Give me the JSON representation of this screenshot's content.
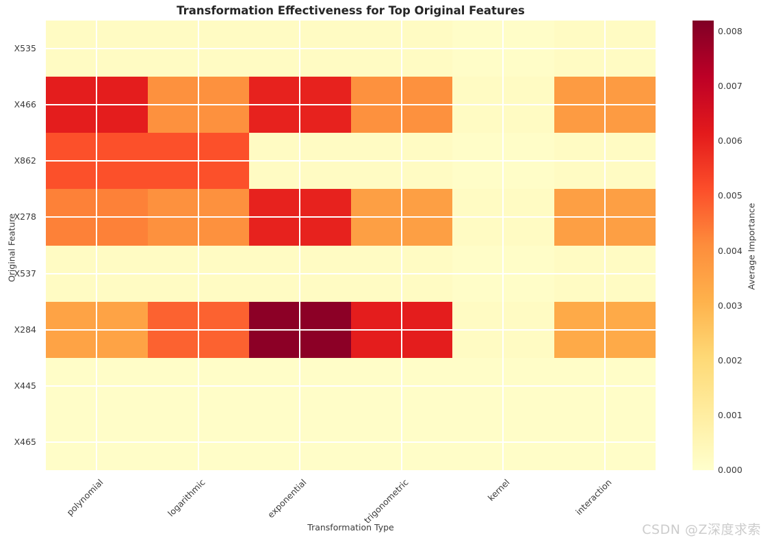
{
  "title": "Transformation Effectiveness for Top Original Features",
  "watermark": "CSDN @Z深度求索",
  "chart_data": {
    "type": "heatmap",
    "title": "Transformation Effectiveness for Top Original Features",
    "xlabel": "Transformation Type",
    "ylabel": "Original Feature",
    "x_categories": [
      "polynomial",
      "logarithmic",
      "exponential",
      "trigonometric",
      "kernel",
      "interaction"
    ],
    "y_categories": [
      "X535",
      "X466",
      "X862",
      "X278",
      "X537",
      "X284",
      "X445",
      "X465"
    ],
    "values": [
      [
        0.0002,
        0.0002,
        0.0002,
        0.0002,
        0.0001,
        0.0002
      ],
      [
        0.0061,
        0.004,
        0.006,
        0.004,
        0.0002,
        0.0037
      ],
      [
        0.0051,
        0.0051,
        0.0002,
        0.0002,
        0.0001,
        0.0002
      ],
      [
        0.0043,
        0.004,
        0.006,
        0.0036,
        0.0002,
        0.0036
      ],
      [
        0.0002,
        0.0002,
        0.0002,
        0.0002,
        0.0001,
        0.0002
      ],
      [
        0.0035,
        0.0048,
        0.008,
        0.0061,
        0.0002,
        0.0033
      ],
      [
        0.0001,
        0.0001,
        0.0001,
        0.0001,
        0.0001,
        0.0001
      ],
      [
        0.0001,
        0.0001,
        0.0001,
        0.0001,
        0.0001,
        0.0001
      ]
    ],
    "vmin": 0.0,
    "vmax": 0.0082,
    "colormap": "YlOrRd",
    "grid": "white gridlines at tick centers",
    "legend_position": "right colorbar",
    "colorbar": {
      "label": "Average Importance",
      "ticks": [
        "0.000",
        "0.001",
        "0.002",
        "0.003",
        "0.004",
        "0.005",
        "0.006",
        "0.007",
        "0.008"
      ]
    }
  }
}
